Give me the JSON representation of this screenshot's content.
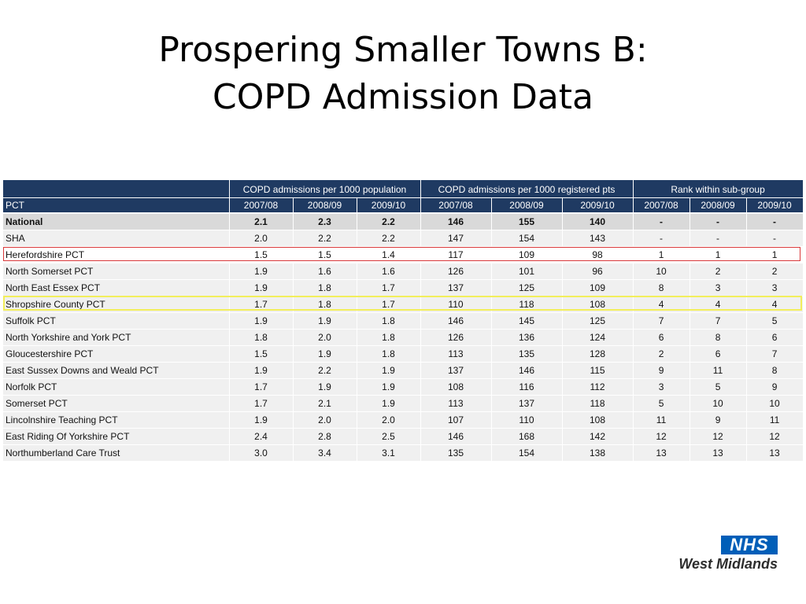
{
  "title": {
    "line1": "Prospering Smaller Towns B:",
    "line2": "COPD Admission Data"
  },
  "table": {
    "pct_header": "PCT",
    "groups": [
      "COPD admissions per 1000 population",
      "COPD admissions per 1000 registered pts",
      "Rank within sub-group"
    ],
    "years": [
      "2007/08",
      "2008/09",
      "2009/10",
      "2007/08",
      "2008/09",
      "2009/10",
      "2007/08",
      "2008/09",
      "2009/10"
    ],
    "rows": [
      [
        "National",
        "2.1",
        "2.3",
        "2.2",
        "146",
        "155",
        "140",
        "-",
        "-",
        "-"
      ],
      [
        "SHA",
        "2.0",
        "2.2",
        "2.2",
        "147",
        "154",
        "143",
        "-",
        "-",
        "-"
      ],
      [
        "Herefordshire PCT",
        "1.5",
        "1.5",
        "1.4",
        "117",
        "109",
        "98",
        "1",
        "1",
        "1"
      ],
      [
        "North Somerset PCT",
        "1.9",
        "1.6",
        "1.6",
        "126",
        "101",
        "96",
        "10",
        "2",
        "2"
      ],
      [
        "North East Essex PCT",
        "1.9",
        "1.8",
        "1.7",
        "137",
        "125",
        "109",
        "8",
        "3",
        "3"
      ],
      [
        "Shropshire County PCT",
        "1.7",
        "1.8",
        "1.7",
        "110",
        "118",
        "108",
        "4",
        "4",
        "4"
      ],
      [
        "Suffolk PCT",
        "1.9",
        "1.9",
        "1.8",
        "146",
        "145",
        "125",
        "7",
        "7",
        "5"
      ],
      [
        "North Yorkshire and York PCT",
        "1.8",
        "2.0",
        "1.8",
        "126",
        "136",
        "124",
        "6",
        "8",
        "6"
      ],
      [
        "Gloucestershire PCT",
        "1.5",
        "1.9",
        "1.8",
        "113",
        "135",
        "128",
        "2",
        "6",
        "7"
      ],
      [
        "East Sussex Downs and Weald PCT",
        "1.9",
        "2.2",
        "1.9",
        "137",
        "146",
        "115",
        "9",
        "11",
        "8"
      ],
      [
        "Norfolk PCT",
        "1.7",
        "1.9",
        "1.9",
        "108",
        "116",
        "112",
        "3",
        "5",
        "9"
      ],
      [
        "Somerset PCT",
        "1.7",
        "2.1",
        "1.9",
        "113",
        "137",
        "118",
        "5",
        "10",
        "10"
      ],
      [
        "Lincolnshire Teaching PCT",
        "1.9",
        "2.0",
        "2.0",
        "107",
        "110",
        "108",
        "11",
        "9",
        "11"
      ],
      [
        "East Riding Of Yorkshire PCT",
        "2.4",
        "2.8",
        "2.5",
        "146",
        "168",
        "142",
        "12",
        "12",
        "12"
      ],
      [
        "Northumberland Care Trust",
        "3.0",
        "3.4",
        "3.1",
        "135",
        "154",
        "138",
        "13",
        "13",
        "13"
      ]
    ]
  },
  "logo": {
    "mark": "NHS",
    "region": "West Midlands"
  },
  "colors": {
    "header_bg": "#1f3a62",
    "red_highlight": "#d9383a",
    "yellow_highlight": "#f2ee5c",
    "nhs_blue": "#005eb8"
  }
}
